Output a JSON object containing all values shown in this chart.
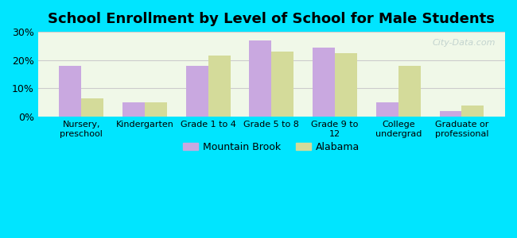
{
  "title": "School Enrollment by Level of School for Male Students",
  "categories": [
    "Nursery,\npreschool",
    "Kindergarten",
    "Grade 1 to 4",
    "Grade 5 to 8",
    "Grade 9 to\n12",
    "College\nundergrad",
    "Graduate or\nprofessional"
  ],
  "mountain_brook": [
    18.0,
    5.0,
    18.0,
    27.0,
    24.5,
    5.0,
    2.0
  ],
  "alabama": [
    6.5,
    5.0,
    21.5,
    23.0,
    22.5,
    18.0,
    4.0
  ],
  "mountain_brook_color": "#c9a8e0",
  "alabama_color": "#d4db9a",
  "background_outer": "#00e5ff",
  "background_inner": "#f0f8e8",
  "ylim": [
    0,
    30
  ],
  "yticks": [
    0,
    10,
    20,
    30
  ],
  "ytick_labels": [
    "0%",
    "10%",
    "20%",
    "30%"
  ],
  "bar_width": 0.35,
  "title_fontsize": 13,
  "legend_labels": [
    "Mountain Brook",
    "Alabama"
  ],
  "grid_color": "#cccccc"
}
